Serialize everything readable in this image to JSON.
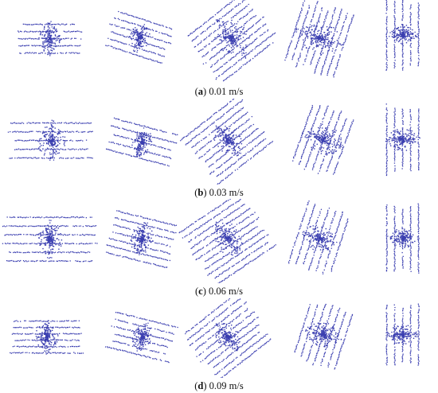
{
  "figure": {
    "dot_color": "#3b3fb0",
    "rows": [
      {
        "label": "a",
        "caption": "0.01 m/s"
      },
      {
        "label": "b",
        "caption": "0.03 m/s"
      },
      {
        "label": "c",
        "caption": "0.06 m/s"
      },
      {
        "label": "d",
        "caption": "0.09 m/s"
      }
    ]
  }
}
